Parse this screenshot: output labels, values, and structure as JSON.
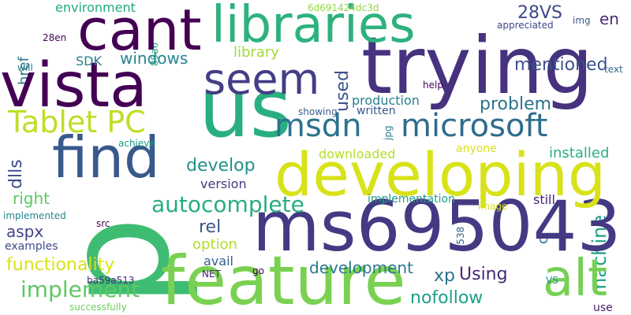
{
  "words": [
    {
      "text": "p",
      "color": "#3fbc73"
    },
    {
      "text": "trying",
      "color": "#46327e"
    },
    {
      "text": "ms695043",
      "color": "#443a83"
    },
    {
      "text": "developing",
      "color": "#d8e219"
    },
    {
      "text": "feature",
      "color": "#7ad151"
    },
    {
      "text": "cant",
      "color": "#440154"
    },
    {
      "text": "libraries",
      "color": "#2db27d"
    },
    {
      "text": "vista",
      "color": "#440154"
    },
    {
      "text": "us",
      "color": "#29af7f"
    },
    {
      "text": "find",
      "color": "#38598c"
    },
    {
      "text": "seem",
      "color": "#433e85"
    },
    {
      "text": "alt",
      "color": "#75d054"
    },
    {
      "text": "microsoft",
      "color": "#2f6c8e"
    },
    {
      "text": "msdn",
      "color": "#2c728e"
    },
    {
      "text": "Tablet PC",
      "color": "#bddf26"
    },
    {
      "text": "autocomplete",
      "color": "#27ad81"
    },
    {
      "text": "implement",
      "color": "#5ec962"
    },
    {
      "text": "functionality",
      "color": "#d8e219"
    },
    {
      "text": "mentioned",
      "color": "#3b528b"
    },
    {
      "text": "problem",
      "color": "#2c728e"
    },
    {
      "text": "develop",
      "color": "#21918c"
    },
    {
      "text": "nofollow",
      "color": "#1f9e89"
    },
    {
      "text": "development",
      "color": "#2a788e"
    },
    {
      "text": "windows",
      "color": "#25848e"
    },
    {
      "text": "library",
      "color": "#a0da39"
    },
    {
      "text": "machine",
      "color": "#1fa187"
    },
    {
      "text": "Using",
      "color": "#482878"
    },
    {
      "text": "xp",
      "color": "#2c728e"
    },
    {
      "text": "28VS",
      "color": "#3e4989"
    },
    {
      "text": "aspx",
      "color": "#414487"
    },
    {
      "text": "rel",
      "color": "#38598c"
    },
    {
      "text": "right",
      "color": "#5ec962"
    },
    {
      "text": "option",
      "color": "#b5de2b"
    },
    {
      "text": "installed",
      "color": "#29af7f"
    },
    {
      "text": "production",
      "color": "#26828e"
    },
    {
      "text": "environment",
      "color": "#22a884"
    },
    {
      "text": "dlls",
      "color": "#3e4989"
    },
    {
      "text": "used",
      "color": "#3b528b"
    },
    {
      "text": "en",
      "color": "#472c7a"
    },
    {
      "text": "href",
      "color": "#2a788e"
    },
    {
      "text": "downloaded",
      "color": "#b5de2b"
    },
    {
      "text": "implementation",
      "color": "#1f9e89"
    },
    {
      "text": "version",
      "color": "#453882"
    },
    {
      "text": "still",
      "color": "#482475"
    },
    {
      "text": "written",
      "color": "#39568c"
    },
    {
      "text": "examples",
      "color": "#3e4989"
    },
    {
      "text": "avail",
      "color": "#355f8d"
    },
    {
      "text": "anyone",
      "color": "#d8e219"
    },
    {
      "text": "SDK",
      "color": "#287d8e"
    },
    {
      "text": "appreciated",
      "color": "#404688"
    },
    {
      "text": "showing",
      "color": "#355f8d"
    },
    {
      "text": "help",
      "color": "#440154"
    },
    {
      "text": "ba59a513",
      "color": "#472d7b"
    },
    {
      "text": "NET",
      "color": "#482173"
    },
    {
      "text": "c",
      "color": "#2c728e"
    },
    {
      "text": "text",
      "color": "#31688e"
    },
    {
      "text": "implemented",
      "color": "#23898e"
    },
    {
      "text": "successfully",
      "color": "#6ccd5a"
    },
    {
      "text": "achieve",
      "color": "#1f9a8a"
    },
    {
      "text": "image",
      "color": "#d8e219"
    },
    {
      "text": "src",
      "color": "#440154"
    },
    {
      "text": "use",
      "color": "#481b6d"
    },
    {
      "text": "go",
      "color": "#440154"
    },
    {
      "text": "will",
      "color": "#2a788e"
    },
    {
      "text": "28en",
      "color": "#440154"
    },
    {
      "text": "img",
      "color": "#375a8c"
    },
    {
      "text": "jpg",
      "color": "#2a788e"
    },
    {
      "text": "6d691424dc3d",
      "color": "#95d840"
    },
    {
      "text": "89a6",
      "color": "#22a884"
    },
    {
      "text": "e538",
      "color": "#33638d"
    },
    {
      "text": "VS",
      "color": "#21918c"
    }
  ]
}
